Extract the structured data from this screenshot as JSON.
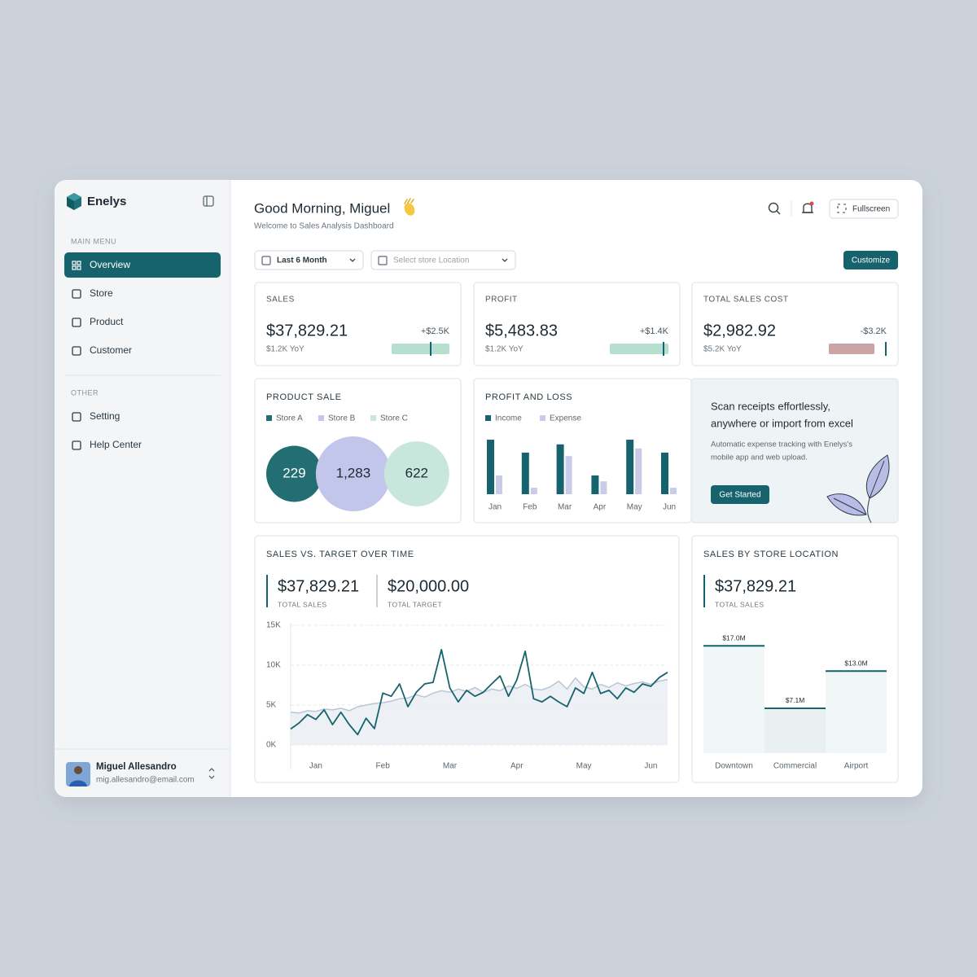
{
  "sidebar": {
    "brand": "Enelys",
    "main_menu_label": "MAIN MENU",
    "main_menu": [
      "Overview",
      "Store",
      "Product",
      "Customer"
    ],
    "other_label": "OTHER",
    "other_menu": [
      "Setting",
      "Help Center"
    ],
    "user": {
      "name": "Miguel Allesandro",
      "email": "mig.allesandro@email.com"
    }
  },
  "header": {
    "greeting": "Good Morning, Miguel",
    "subtitle": "Welcome to Sales Analysis Dashboard",
    "fullscreen": "Fullscreen",
    "customize": "Customize",
    "period_filter": "Last 6 Month",
    "location_filter": "Select store Location"
  },
  "kpis": [
    {
      "label": "SALES",
      "value": "$37,829.21",
      "change": "+$2.5K",
      "yoy": "$1.2K YoY"
    },
    {
      "label": "PROFIT",
      "value": "$5,483.83",
      "change": "+$1.4K",
      "yoy": "$1.2K YoY"
    },
    {
      "label": "TOTAL SALES COST",
      "value": "$2,982.92",
      "change": "-$3.2K",
      "yoy": "$5.2K YoY"
    }
  ],
  "promo": {
    "title": [
      "Scan receipts effortlessly,",
      "anywhere or import from excel"
    ],
    "body": [
      "Automatic expense tracking with Enelys's",
      "mobile app and web upload."
    ],
    "button": "Get Started"
  },
  "chart_data": [
    {
      "type": "bubble",
      "title": "PRODUCT SALE",
      "categories": [
        "Store A",
        "Store B",
        "Store C"
      ],
      "values": [
        229,
        1283,
        622
      ],
      "value_labels": [
        "229",
        "1,283",
        "622"
      ],
      "colors": [
        "#226e73",
        "#c3c6eb",
        "#c8e6dc"
      ]
    },
    {
      "type": "bar",
      "title": "PROFIT AND LOSS",
      "categories": [
        "Jan",
        "Feb",
        "Mar",
        "Apr",
        "May",
        "Jun"
      ],
      "ylim": [
        0,
        100
      ],
      "series": [
        {
          "name": "Income",
          "color": "#17636d",
          "values": [
            93,
            71,
            85,
            32,
            93,
            71
          ]
        },
        {
          "name": "Expense",
          "color": "#c9cbe8",
          "values": [
            32,
            11,
            65,
            22,
            78,
            11
          ]
        }
      ]
    },
    {
      "type": "line",
      "title": "SALES VS. TARGET OVER TIME",
      "stats": [
        {
          "value": "$37,829.21",
          "label": "TOTAL SALES"
        },
        {
          "value": "$20,000.00",
          "label": "TOTAL TARGET"
        }
      ],
      "categories": [
        null,
        null,
        null,
        "Jan",
        null,
        null,
        null,
        null,
        null,
        null,
        null,
        "Feb",
        null,
        null,
        null,
        null,
        null,
        null,
        null,
        "Mar",
        null,
        null,
        null,
        null,
        null,
        null,
        null,
        "Apr",
        null,
        null,
        null,
        null,
        null,
        null,
        null,
        "May",
        null,
        null,
        null,
        null,
        null,
        null,
        null,
        "Jun",
        null,
        null
      ],
      "ylim": [
        0,
        15000
      ],
      "yticks": [
        {
          "value": 0,
          "label": "0K"
        },
        {
          "value": 5000,
          "label": "5K"
        },
        {
          "value": 10000,
          "label": "10K"
        },
        {
          "value": 15000,
          "label": "15K"
        }
      ],
      "grid": true,
      "series": [
        {
          "color": "#b9c6d6",
          "area": true,
          "values": [
            4100,
            4000,
            4300,
            4200,
            4500,
            4400,
            4600,
            4300,
            4800,
            5000,
            5200,
            5300,
            5500,
            5800,
            5900,
            6300,
            6000,
            6500,
            6800,
            6600,
            7000,
            6700,
            7200,
            6600,
            7000,
            6800,
            7400,
            7100,
            7600,
            7000,
            6900,
            7300,
            8000,
            7000,
            8400,
            7300,
            7000,
            7600,
            7200,
            7800,
            7400,
            7700,
            7900,
            7600,
            8000,
            8200
          ]
        },
        {
          "color": "#17636d",
          "area": false,
          "values": [
            2000,
            2750,
            3800,
            3200,
            4400,
            2550,
            4100,
            2550,
            1300,
            3350,
            2050,
            6500,
            6100,
            7650,
            4800,
            6600,
            7650,
            7850,
            11950,
            7150,
            5400,
            6850,
            6100,
            6600,
            7650,
            8650,
            6100,
            8150,
            11750,
            5800,
            5400,
            6100,
            5400,
            4800,
            7150,
            6450,
            9100,
            6450,
            6850,
            5800,
            7150,
            6600,
            7650,
            7350,
            8450,
            9100
          ]
        }
      ]
    },
    {
      "type": "bar",
      "title": "SALES BY STORE LOCATION",
      "stats": [
        {
          "value": "$37,829.21",
          "label": "TOTAL SALES"
        }
      ],
      "categories": [
        "Downtown",
        "Commercial",
        "Airport"
      ],
      "values": [
        17000000,
        7100000,
        13000000
      ],
      "value_labels": [
        "$17.0M",
        "$7.1M",
        "$13.0M"
      ],
      "color": "#17636d",
      "ylim": [
        0,
        20000000
      ]
    }
  ]
}
